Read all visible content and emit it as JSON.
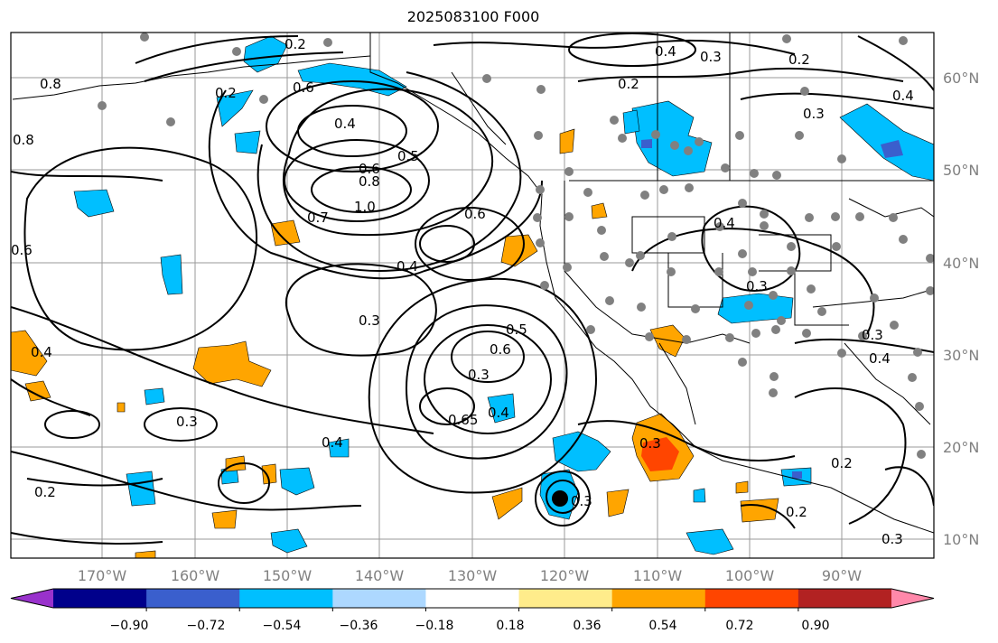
{
  "title": "2025083100 F000",
  "longitude_labels": [
    "170°W",
    "160°W",
    "150°W",
    "140°W",
    "130°W",
    "120°W",
    "110°W",
    "100°W",
    "90°W"
  ],
  "latitude_labels": [
    "60°N",
    "50°N",
    "40°N",
    "30°N",
    "20°N",
    "10°N"
  ],
  "colorbar": {
    "colors": [
      "#9932cc",
      "#00008b",
      "#3a5fcd",
      "#00bfff",
      "#add8ff",
      "#ffffff",
      "#ffec8b",
      "#ffa500",
      "#ff4500",
      "#b22222",
      "#ff88aa"
    ],
    "tick_labels": [
      "−0.90",
      "−0.72",
      "−0.54",
      "−0.36",
      "−0.18",
      "0.18",
      "0.36",
      "0.54",
      "0.72",
      "0.90"
    ]
  },
  "contour_labels": [
    "0.2",
    "0.4",
    "0.3",
    "0.2",
    "0.3",
    "0.4",
    "0.2",
    "0.6",
    "0.8",
    "0.4",
    "0.5",
    "0.6",
    "0.8",
    "1.0",
    "0.7",
    "0.6",
    "0.4",
    "0.3",
    "0.5",
    "0.6",
    "0.3",
    "0.65",
    "0.4",
    "0.3",
    "0.4",
    "0.3",
    "0.2",
    "0.2",
    "0.3",
    "0.2",
    "0.4",
    "0.3",
    "0.3",
    "0.4",
    "0.6",
    "0.8",
    "0.2",
    "0.4",
    "0.3"
  ],
  "storm_marker": "tropical-cyclone-center"
}
